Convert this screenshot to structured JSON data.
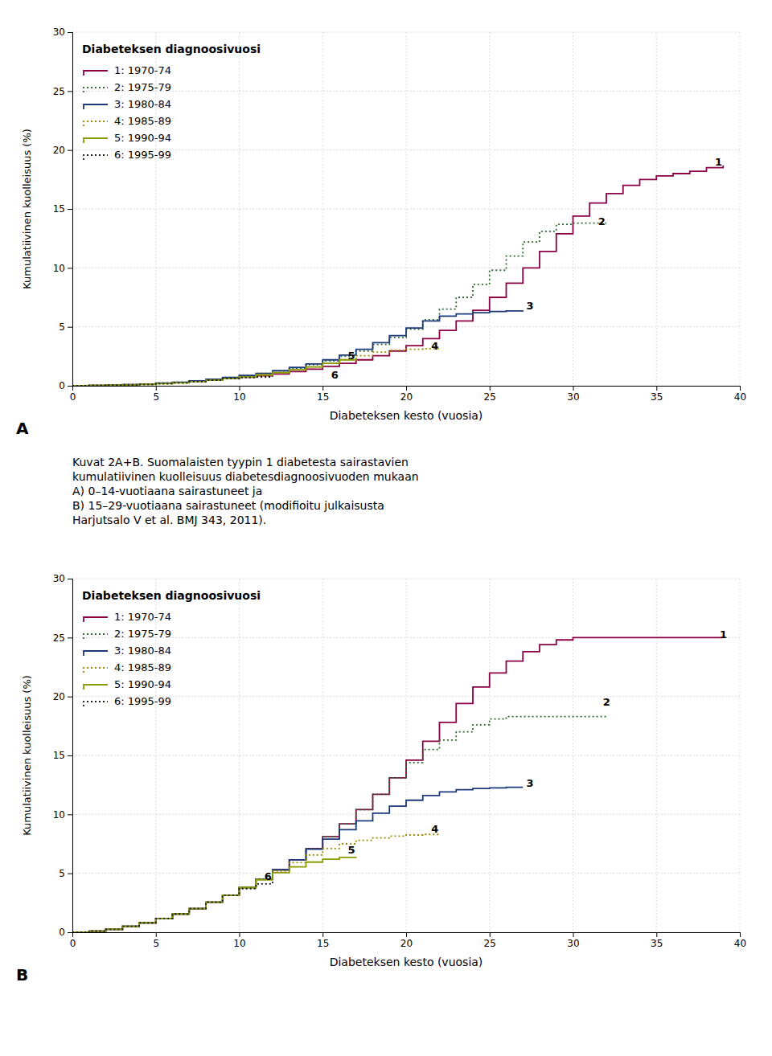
{
  "caption": "Kuvat 2A+B. Suomalaisten tyypin 1 diabetesta sairastavien\nkumulatiivinen kuolleisuus diabetesdiagnoosivuoden mukaan\nA) 0–14-vuotiaana sairastuneet ja\nB) 15–29-vuotiaana sairastuneet (modifioitu julkaisusta\nHarjutsalo V et al. BMJ 343, 2011).",
  "chart_data": [
    {
      "type": "step",
      "legend_title": "Diabeteksen diagnoosivuosi",
      "panel_label": "A",
      "x_label": "Diabeteksen kesto (vuosia)",
      "y_label": "Kumulatiivinen kuolleisuus (%)",
      "xlim": [
        0,
        40
      ],
      "ylim": [
        0,
        30
      ],
      "xticks": [
        0,
        5,
        10,
        15,
        20,
        25,
        30,
        35,
        40
      ],
      "yticks": [
        0,
        5,
        10,
        15,
        20,
        25,
        30
      ],
      "grid": true,
      "legend": "upper left",
      "series": [
        {
          "name": "1: 1970-74",
          "color": "#8B0046",
          "line_style": "solid",
          "x": [
            0,
            1,
            2,
            3,
            4,
            5,
            6,
            7,
            8,
            9,
            10,
            11,
            12,
            13,
            14,
            15,
            16,
            17,
            18,
            19,
            20,
            21,
            22,
            23,
            24,
            25,
            26,
            27,
            28,
            29,
            30,
            31,
            32,
            33,
            34,
            35,
            36,
            37,
            38,
            39
          ],
          "values": [
            0,
            0.02,
            0.05,
            0.1,
            0.15,
            0.2,
            0.28,
            0.38,
            0.48,
            0.6,
            0.72,
            0.85,
            1.0,
            1.2,
            1.4,
            1.65,
            1.9,
            2.2,
            2.55,
            2.95,
            3.4,
            4.0,
            4.7,
            5.5,
            6.4,
            7.5,
            8.7,
            10.0,
            11.4,
            12.9,
            14.4,
            15.5,
            16.3,
            17.0,
            17.5,
            17.8,
            18.0,
            18.2,
            18.5,
            18.7
          ]
        },
        {
          "name": "2: 1975-79",
          "color": "#2E6B2E",
          "line_style": "dotted",
          "x": [
            0,
            1,
            2,
            3,
            4,
            5,
            6,
            7,
            8,
            9,
            10,
            11,
            12,
            13,
            14,
            15,
            16,
            17,
            18,
            19,
            20,
            21,
            22,
            23,
            24,
            25,
            26,
            27,
            28,
            29,
            30,
            31,
            32
          ],
          "values": [
            0,
            0.02,
            0.05,
            0.1,
            0.15,
            0.22,
            0.3,
            0.42,
            0.55,
            0.7,
            0.87,
            1.05,
            1.25,
            1.5,
            1.78,
            2.1,
            2.5,
            2.95,
            3.5,
            4.1,
            4.8,
            5.6,
            6.5,
            7.5,
            8.6,
            9.8,
            11.0,
            12.2,
            13.1,
            13.7,
            13.8,
            13.8,
            13.8
          ]
        },
        {
          "name": "3: 1980-84",
          "color": "#1C3A7A",
          "line_style": "solid",
          "x": [
            0,
            1,
            2,
            3,
            4,
            5,
            6,
            7,
            8,
            9,
            10,
            11,
            12,
            13,
            14,
            15,
            16,
            17,
            18,
            19,
            20,
            21,
            22,
            23,
            24,
            25,
            26,
            27
          ],
          "values": [
            0,
            0.02,
            0.05,
            0.1,
            0.15,
            0.22,
            0.3,
            0.42,
            0.55,
            0.7,
            0.87,
            1.05,
            1.28,
            1.55,
            1.85,
            2.2,
            2.6,
            3.1,
            3.65,
            4.25,
            4.9,
            5.5,
            5.9,
            6.1,
            6.2,
            6.3,
            6.35,
            6.4
          ]
        },
        {
          "name": "4: 1985-89",
          "color": "#9B8B00",
          "line_style": "dotted",
          "x": [
            0,
            1,
            2,
            3,
            4,
            5,
            6,
            7,
            8,
            9,
            10,
            11,
            12,
            13,
            14,
            15,
            16,
            17,
            18,
            19,
            20,
            21,
            22
          ],
          "values": [
            0,
            0.02,
            0.05,
            0.08,
            0.12,
            0.18,
            0.25,
            0.35,
            0.47,
            0.6,
            0.75,
            0.92,
            1.12,
            1.35,
            1.6,
            1.9,
            2.2,
            2.55,
            2.85,
            3.0,
            3.1,
            3.15,
            3.15
          ]
        },
        {
          "name": "5: 1990-94",
          "color": "#8B9B00",
          "line_style": "solid",
          "x": [
            0,
            1,
            2,
            3,
            4,
            5,
            6,
            7,
            8,
            9,
            10,
            11,
            12,
            13,
            14,
            15,
            16,
            17
          ],
          "values": [
            0,
            0.02,
            0.05,
            0.08,
            0.12,
            0.18,
            0.25,
            0.35,
            0.47,
            0.6,
            0.75,
            0.92,
            1.12,
            1.35,
            1.6,
            1.9,
            2.2,
            2.4
          ]
        },
        {
          "name": "6: 1995-99",
          "color": "#1A1A1A",
          "line_style": "dotted",
          "x": [
            0,
            1,
            2,
            3,
            4,
            5,
            6,
            7,
            8,
            9,
            10,
            11,
            12
          ],
          "values": [
            0,
            0.02,
            0.05,
            0.08,
            0.12,
            0.18,
            0.25,
            0.35,
            0.47,
            0.6,
            0.7,
            0.75,
            0.78
          ]
        }
      ],
      "annotations": [
        {
          "x": 38.5,
          "y": 18.9,
          "text": "1"
        },
        {
          "x": 31.5,
          "y": 13.9,
          "text": "2"
        },
        {
          "x": 27.2,
          "y": 6.7,
          "text": "3"
        },
        {
          "x": 21.5,
          "y": 3.3,
          "text": "4"
        },
        {
          "x": 16.5,
          "y": 2.5,
          "text": "5"
        },
        {
          "x": 15.5,
          "y": 0.85,
          "text": "6"
        }
      ]
    },
    {
      "type": "step",
      "legend_title": "Diabeteksen diagnoosivuosi",
      "panel_label": "B",
      "x_label": "Diabeteksen kesto (vuosia)",
      "y_label": "Kumulatiivinen kuolleisuus (%)",
      "xlim": [
        0,
        40
      ],
      "ylim": [
        0,
        30
      ],
      "xticks": [
        0,
        5,
        10,
        15,
        20,
        25,
        30,
        35,
        40
      ],
      "yticks": [
        0,
        5,
        10,
        15,
        20,
        25,
        30
      ],
      "grid": true,
      "legend": "upper left",
      "series": [
        {
          "name": "1: 1970-74",
          "color": "#8B0046",
          "line_style": "solid",
          "x": [
            0,
            1,
            2,
            3,
            4,
            5,
            6,
            7,
            8,
            9,
            10,
            11,
            12,
            13,
            14,
            15,
            16,
            17,
            18,
            19,
            20,
            21,
            22,
            23,
            24,
            25,
            26,
            27,
            28,
            29,
            30,
            31,
            32,
            33,
            34,
            35,
            36,
            37,
            38,
            39
          ],
          "values": [
            0,
            0.1,
            0.25,
            0.5,
            0.8,
            1.15,
            1.55,
            2.0,
            2.55,
            3.15,
            3.8,
            4.5,
            5.3,
            6.15,
            7.1,
            8.1,
            9.2,
            10.4,
            11.7,
            13.1,
            14.6,
            16.2,
            17.8,
            19.4,
            20.8,
            22.0,
            23.0,
            23.8,
            24.4,
            24.8,
            25.0,
            25.0,
            25.0,
            25.0,
            25.0,
            25.0,
            25.0,
            25.0,
            25.0,
            25.0
          ]
        },
        {
          "name": "2: 1975-79",
          "color": "#2E6B2E",
          "line_style": "dotted",
          "x": [
            0,
            1,
            2,
            3,
            4,
            5,
            6,
            7,
            8,
            9,
            10,
            11,
            12,
            13,
            14,
            15,
            16,
            17,
            18,
            19,
            20,
            21,
            22,
            23,
            24,
            25,
            26,
            27,
            28,
            29,
            30,
            31,
            32
          ],
          "values": [
            0,
            0.1,
            0.25,
            0.5,
            0.8,
            1.15,
            1.55,
            2.0,
            2.55,
            3.15,
            3.8,
            4.5,
            5.3,
            6.15,
            7.1,
            8.1,
            9.2,
            10.4,
            11.7,
            13.1,
            14.4,
            15.5,
            16.3,
            17.0,
            17.6,
            18.1,
            18.3,
            18.3,
            18.3,
            18.3,
            18.3,
            18.3,
            18.3
          ]
        },
        {
          "name": "3: 1980-84",
          "color": "#1C3A7A",
          "line_style": "solid",
          "x": [
            0,
            1,
            2,
            3,
            4,
            5,
            6,
            7,
            8,
            9,
            10,
            11,
            12,
            13,
            14,
            15,
            16,
            17,
            18,
            19,
            20,
            21,
            22,
            23,
            24,
            25,
            26,
            27
          ],
          "values": [
            0,
            0.1,
            0.25,
            0.5,
            0.8,
            1.15,
            1.55,
            2.0,
            2.55,
            3.15,
            3.8,
            4.5,
            5.3,
            6.15,
            7.05,
            7.9,
            8.7,
            9.45,
            10.1,
            10.7,
            11.2,
            11.6,
            11.9,
            12.1,
            12.2,
            12.25,
            12.3,
            12.3
          ]
        },
        {
          "name": "4: 1985-89",
          "color": "#9B8B00",
          "line_style": "dotted",
          "x": [
            0,
            1,
            2,
            3,
            4,
            5,
            6,
            7,
            8,
            9,
            10,
            11,
            12,
            13,
            14,
            15,
            16,
            17,
            18,
            19,
            20,
            21,
            22
          ],
          "values": [
            0,
            0.1,
            0.25,
            0.5,
            0.8,
            1.15,
            1.55,
            2.0,
            2.55,
            3.15,
            3.8,
            4.5,
            5.2,
            5.9,
            6.55,
            7.1,
            7.5,
            7.8,
            8.0,
            8.15,
            8.25,
            8.3,
            8.3
          ]
        },
        {
          "name": "5: 1990-94",
          "color": "#8B9B00",
          "line_style": "solid",
          "x": [
            0,
            1,
            2,
            3,
            4,
            5,
            6,
            7,
            8,
            9,
            10,
            11,
            12,
            13,
            14,
            15,
            16,
            17
          ],
          "values": [
            0,
            0.1,
            0.25,
            0.5,
            0.8,
            1.15,
            1.55,
            2.0,
            2.55,
            3.15,
            3.8,
            4.45,
            5.05,
            5.55,
            5.95,
            6.2,
            6.35,
            6.4
          ]
        },
        {
          "name": "6: 1995-99",
          "color": "#1A1A1A",
          "line_style": "dotted",
          "x": [
            0,
            1,
            2,
            3,
            4,
            5,
            6,
            7,
            8,
            9,
            10,
            11,
            12
          ],
          "values": [
            0,
            0.1,
            0.25,
            0.5,
            0.8,
            1.15,
            1.55,
            2.0,
            2.55,
            3.15,
            3.7,
            4.1,
            4.3
          ]
        }
      ],
      "annotations": [
        {
          "x": 38.8,
          "y": 25.2,
          "text": "1"
        },
        {
          "x": 31.8,
          "y": 19.5,
          "text": "2"
        },
        {
          "x": 27.2,
          "y": 12.55,
          "text": "3"
        },
        {
          "x": 21.5,
          "y": 8.7,
          "text": "4"
        },
        {
          "x": 16.5,
          "y": 6.9,
          "text": "5"
        },
        {
          "x": 11.5,
          "y": 4.7,
          "text": "6"
        }
      ]
    }
  ]
}
